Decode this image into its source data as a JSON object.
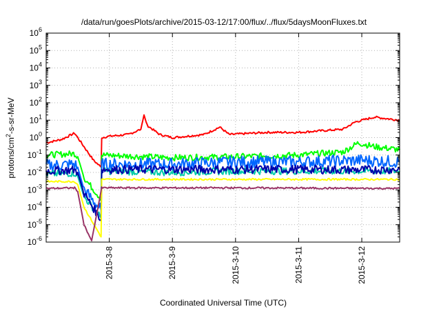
{
  "chart_data": {
    "type": "line",
    "title": "/data/run/goesPlots/archive/2015-03-12/17:00/flux/../flux/5daysMoonFluxes.txt",
    "xlabel": "Coordinated Universal Time (UTC)",
    "ylabel_base": "protons/cm",
    "ylabel_exp": "2",
    "ylabel_rest": "-s-sr-MeV",
    "yscale": "log",
    "ylim": [
      1e-06,
      1000000.0
    ],
    "xlim": [
      0,
      5.6
    ],
    "x_ticks": [
      {
        "x": 1,
        "label": "2015-3-8"
      },
      {
        "x": 2,
        "label": "2015-3-9"
      },
      {
        "x": 3,
        "label": "2015-3-10"
      },
      {
        "x": 4,
        "label": "2015-3-11"
      },
      {
        "x": 5,
        "label": "2015-3-12"
      }
    ],
    "y_ticks": [
      {
        "exp": -6,
        "base": "10",
        "sup": "-6"
      },
      {
        "exp": -5,
        "base": "10",
        "sup": "-5"
      },
      {
        "exp": -4,
        "base": "10",
        "sup": "-4"
      },
      {
        "exp": -3,
        "base": "10",
        "sup": "-3"
      },
      {
        "exp": -2,
        "base": "10",
        "sup": "-2"
      },
      {
        "exp": -1,
        "base": "10",
        "sup": "-1"
      },
      {
        "exp": 0,
        "base": "10",
        "sup": "0"
      },
      {
        "exp": 1,
        "base": "10",
        "sup": "1"
      },
      {
        "exp": 2,
        "base": "10",
        "sup": "2"
      },
      {
        "exp": 3,
        "base": "10",
        "sup": "3"
      },
      {
        "exp": 4,
        "base": "10",
        "sup": "4"
      },
      {
        "exp": 5,
        "base": "10",
        "sup": "5"
      },
      {
        "exp": 6,
        "base": "10",
        "sup": "6"
      }
    ],
    "grid": true,
    "series": [
      {
        "color": "#ff0000",
        "noise": 0.06,
        "points": [
          [
            0,
            0.5
          ],
          [
            0.25,
            0.8
          ],
          [
            0.45,
            1.8
          ],
          [
            0.5,
            1.0
          ],
          [
            0.6,
            0.3
          ],
          [
            0.75,
            0.05
          ],
          [
            0.87,
            0.02
          ],
          [
            0.88,
            1.0
          ],
          [
            1.0,
            1.2
          ],
          [
            1.3,
            1.5
          ],
          [
            1.5,
            3
          ],
          [
            1.55,
            20
          ],
          [
            1.6,
            5
          ],
          [
            1.8,
            1.5
          ],
          [
            2.0,
            1.0
          ],
          [
            2.5,
            1.5
          ],
          [
            2.75,
            4
          ],
          [
            2.9,
            1.5
          ],
          [
            3.5,
            2
          ],
          [
            4.0,
            2
          ],
          [
            4.7,
            3
          ],
          [
            4.9,
            8
          ],
          [
            5.2,
            15
          ],
          [
            5.6,
            10
          ]
        ]
      },
      {
        "color": "#00ff00",
        "noise": 0.18,
        "points": [
          [
            0,
            0.1
          ],
          [
            0.45,
            0.12
          ],
          [
            0.5,
            0.08
          ],
          [
            0.6,
            0.005
          ],
          [
            0.87,
            0.0003
          ],
          [
            0.88,
            0.1
          ],
          [
            2.0,
            0.07
          ],
          [
            3.0,
            0.08
          ],
          [
            4.0,
            0.1
          ],
          [
            4.7,
            0.15
          ],
          [
            4.95,
            0.5
          ],
          [
            5.2,
            0.3
          ],
          [
            5.6,
            0.2
          ]
        ]
      },
      {
        "color": "#0066ff",
        "noise": 0.35,
        "points": [
          [
            0,
            0.025
          ],
          [
            0.45,
            0.03
          ],
          [
            0.5,
            0.02
          ],
          [
            0.6,
            0.001
          ],
          [
            0.87,
            7e-05
          ],
          [
            0.88,
            0.03
          ],
          [
            2.0,
            0.03
          ],
          [
            3.0,
            0.04
          ],
          [
            4.0,
            0.04
          ],
          [
            5.0,
            0.05
          ],
          [
            5.6,
            0.04
          ]
        ]
      },
      {
        "color": "#00ccaa",
        "noise": 0.2,
        "points": [
          [
            0,
            0.008
          ],
          [
            0.45,
            0.009
          ],
          [
            0.5,
            0.006
          ],
          [
            0.6,
            0.0004
          ],
          [
            0.87,
            2.5e-05
          ],
          [
            0.88,
            0.012
          ],
          [
            2.0,
            0.01
          ],
          [
            3.0,
            0.012
          ],
          [
            4.0,
            0.012
          ],
          [
            5.0,
            0.012
          ],
          [
            5.6,
            0.012
          ]
        ]
      },
      {
        "color": "#0000aa",
        "noise": 0.25,
        "points": [
          [
            0,
            0.012
          ],
          [
            0.45,
            0.014
          ],
          [
            0.5,
            0.01
          ],
          [
            0.6,
            0.0006
          ],
          [
            0.87,
            2e-05
          ],
          [
            0.88,
            0.015
          ],
          [
            2.0,
            0.015
          ],
          [
            3.0,
            0.015
          ],
          [
            4.0,
            0.015
          ],
          [
            5.0,
            0.014
          ],
          [
            5.6,
            0.015
          ]
        ]
      },
      {
        "color": "#ffff00",
        "noise": 0.05,
        "points": [
          [
            0,
            0.003
          ],
          [
            0.45,
            0.003
          ],
          [
            0.5,
            0.002
          ],
          [
            0.6,
            0.0001
          ],
          [
            0.87,
            2e-06
          ],
          [
            0.88,
            0.004
          ],
          [
            3.0,
            0.004
          ],
          [
            5.6,
            0.004
          ]
        ]
      },
      {
        "color": "#993366",
        "noise": 0.05,
        "points": [
          [
            0,
            0.0012
          ],
          [
            0.45,
            0.0013
          ],
          [
            0.5,
            0.0008
          ],
          [
            0.6,
            1e-05
          ],
          [
            0.72,
            1.2e-06
          ],
          [
            0.88,
            0.0013
          ],
          [
            3.0,
            0.0013
          ],
          [
            5.6,
            0.0012
          ]
        ]
      }
    ]
  }
}
